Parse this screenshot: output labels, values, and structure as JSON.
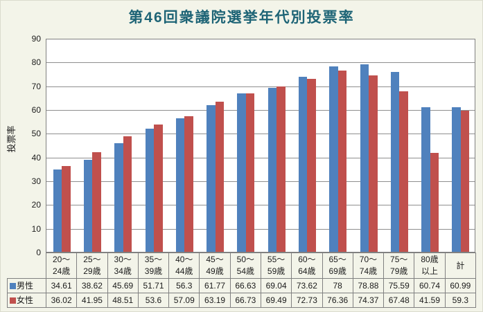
{
  "title": "第46回衆議院選挙年代別投票率",
  "y_axis": {
    "label": "投票率",
    "tick_labels": [
      "90",
      "80",
      "70",
      "60",
      "50",
      "40",
      "30",
      "20",
      "10",
      "0"
    ],
    "min": 0,
    "max": 90,
    "step": 10
  },
  "colors": {
    "male_bar": "#4F81BD",
    "female_bar": "#C0504D",
    "title_text": "#1e6476",
    "background": "#f3f4e9",
    "plot_background": "#ffffff",
    "gridline": "#8e8e8e",
    "table_border": "#808080"
  },
  "chart_data": {
    "type": "bar",
    "title": "第46回衆議院選挙年代別投票率",
    "xlabel": "",
    "ylabel": "投票率",
    "ylim": [
      0,
      90
    ],
    "grid": "horizontal",
    "legend_position": "data-table-keys",
    "categories": [
      "20〜24歳",
      "25〜29歳",
      "30〜34歳",
      "35〜39歳",
      "40〜44歳",
      "45〜49歳",
      "50〜54歳",
      "55〜59歳",
      "60〜64歳",
      "65〜69歳",
      "70〜74歳",
      "75〜79歳",
      "80歳以上",
      "計"
    ],
    "category_lines": [
      [
        "20〜",
        "24歳"
      ],
      [
        "25〜",
        "29歳"
      ],
      [
        "30〜",
        "34歳"
      ],
      [
        "35〜",
        "39歳"
      ],
      [
        "40〜",
        "44歳"
      ],
      [
        "45〜",
        "49歳"
      ],
      [
        "50〜",
        "54歳"
      ],
      [
        "55〜",
        "59歳"
      ],
      [
        "60〜",
        "64歳"
      ],
      [
        "65〜",
        "69歳"
      ],
      [
        "70〜",
        "74歳"
      ],
      [
        "75〜",
        "79歳"
      ],
      [
        "80歳",
        "以上"
      ],
      [
        "計"
      ]
    ],
    "series": [
      {
        "name": "男性",
        "color": "#4F81BD",
        "values": [
          34.61,
          38.62,
          45.69,
          51.71,
          56.3,
          61.77,
          66.63,
          69.04,
          73.62,
          78,
          78.88,
          75.59,
          60.74,
          60.99
        ]
      },
      {
        "name": "女性",
        "color": "#C0504D",
        "values": [
          36.02,
          41.95,
          48.51,
          53.6,
          57.09,
          63.19,
          66.73,
          69.49,
          72.73,
          76.36,
          74.37,
          67.48,
          41.59,
          59.3
        ]
      }
    ]
  }
}
